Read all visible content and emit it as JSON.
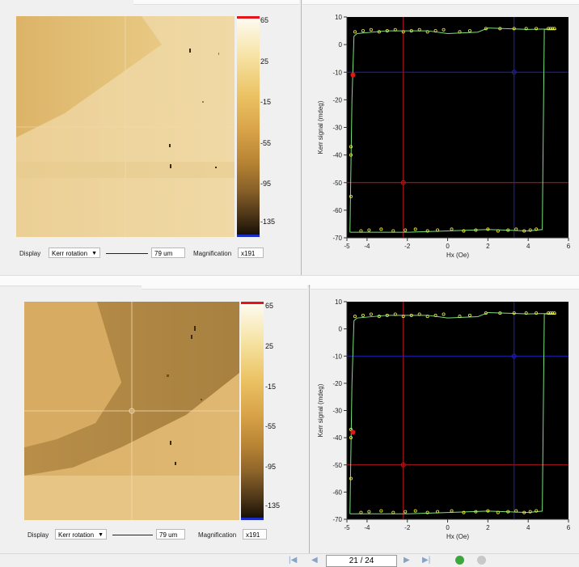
{
  "colorbar": {
    "labels": [
      "65",
      "25",
      "-15",
      "-55",
      "-95",
      "-135"
    ]
  },
  "display_label": "Display",
  "display_value": "Kerr rotation",
  "magnification_label": "Magnification",
  "top_panel": {
    "scale_value": "79 um",
    "magnification_value": "x191"
  },
  "bottom_panel": {
    "scale_value": "79 um",
    "magnification_value": "x191"
  },
  "top_plot": {
    "xlabel": "Hx (Oe)",
    "ylabel": "Kerr signal (mdeg)",
    "yticks": [
      "10",
      "0",
      "-10",
      "-20",
      "-30",
      "-40",
      "-50",
      "-60",
      "-70"
    ],
    "xticks": [
      "-5",
      "-4",
      "-2",
      "0",
      "2",
      "4",
      "6"
    ]
  },
  "bottom_plot": {
    "xlabel": "Hx (Oe)",
    "ylabel": "Kerr signal (mdeg)",
    "yticks": [
      "10",
      "0",
      "-10",
      "-20",
      "-30",
      "-40",
      "-50",
      "-60",
      "-70"
    ],
    "xticks": [
      "-5",
      "-4",
      "-2",
      "0",
      "2",
      "4",
      "6"
    ]
  },
  "pager": {
    "value": "21 / 24"
  },
  "colors": {
    "plot_bg": "#000000",
    "loop": "#7be07b",
    "markers": "#f2f24a",
    "cursor_red": "#c0181e",
    "cursor_blue": "#2020c8",
    "colorbar_top": "#e4141a",
    "colorbar_bottom": "#1b2dc7"
  }
}
